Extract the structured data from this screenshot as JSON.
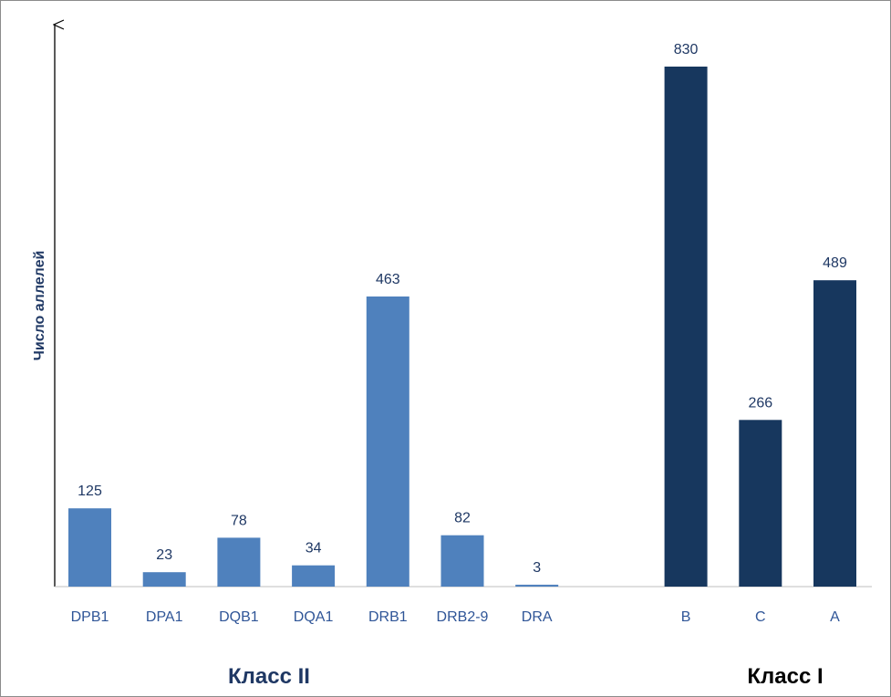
{
  "chart_data": {
    "type": "bar",
    "ylabel": "Число аллелей",
    "xlabel": "",
    "ylim": [
      0,
      830
    ],
    "grid": false,
    "legend": "none",
    "data_labels": true,
    "categories": [
      "DPB1",
      "DPA1",
      "DQB1",
      "DQA1",
      "DRB1",
      "DRB2-9",
      "DRA",
      "B",
      "C",
      "A"
    ],
    "values": [
      125,
      23,
      78,
      34,
      463,
      82,
      3,
      830,
      266,
      489
    ],
    "groups": [
      {
        "label": "Класс II",
        "categories": [
          "DPB1",
          "DPA1",
          "DQB1",
          "DQA1",
          "DRB1",
          "DRB2-9",
          "DRA"
        ],
        "color": "#4f81bd",
        "label_color": "#1f3864"
      },
      {
        "label": "Класс I",
        "categories": [
          "B",
          "C",
          "A"
        ],
        "color": "#17375e",
        "label_color": "#000000"
      }
    ]
  }
}
